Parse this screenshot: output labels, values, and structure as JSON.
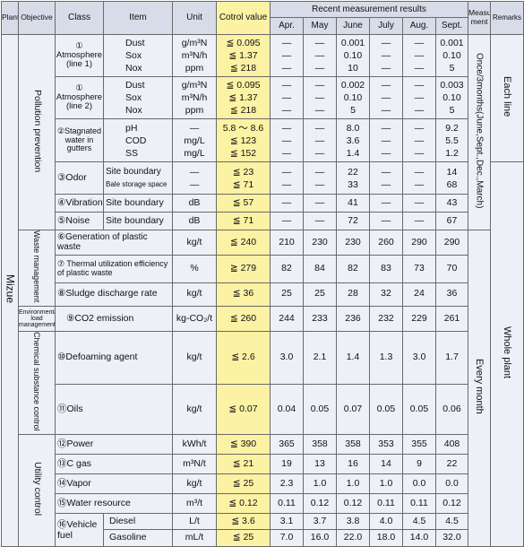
{
  "headers": {
    "plant": "Plant",
    "objective": "Objective",
    "class": "Class",
    "item": "Item",
    "unit": "Unit",
    "control": "Cotrol value",
    "recent": "Recent measurement results",
    "months": [
      "Apr.",
      "May",
      "June",
      "July",
      "Aug.",
      "Sept."
    ],
    "measure": "Measure ment",
    "remarks": "Remarks"
  },
  "plant": "Mizue",
  "objectives": {
    "pollution": "Pollution prevention",
    "waste": "Waste management",
    "env_load": "Environmental load management",
    "chemical": "Chemical substance control",
    "utility": "Utility control"
  },
  "measure": {
    "pollution": "Once/3months(June,Sept.,Dec.,March)",
    "every_month": "Every month"
  },
  "remarks": {
    "each_line": "Each line",
    "whole_plant": "Whole plant"
  },
  "rows": {
    "atm1": {
      "class": "① Atmosphere (line 1)",
      "items": [
        "Dust",
        "Sox",
        "Nox"
      ],
      "units": [
        "g/m³N",
        "m³N/h",
        "ppm"
      ],
      "control": [
        "≦ 0.095",
        "≦ 1.37",
        "≦ 218"
      ],
      "values": [
        [
          "—",
          "—",
          "0.001",
          "—",
          "—",
          "0.001"
        ],
        [
          "—",
          "—",
          "0.10",
          "—",
          "—",
          "0.10"
        ],
        [
          "—",
          "—",
          "10",
          "—",
          "—",
          "5"
        ]
      ]
    },
    "atm2": {
      "class": "① Atmosphere (line 2)",
      "items": [
        "Dust",
        "Sox",
        "Nox"
      ],
      "units": [
        "g/m³N",
        "m³N/h",
        "ppm"
      ],
      "control": [
        "≦ 0.095",
        "≦ 1.37",
        "≦ 218"
      ],
      "values": [
        [
          "—",
          "—",
          "0.002",
          "—",
          "—",
          "0.003"
        ],
        [
          "—",
          "—",
          "0.10",
          "—",
          "—",
          "0.10"
        ],
        [
          "—",
          "—",
          "5",
          "—",
          "—",
          "5"
        ]
      ]
    },
    "water": {
      "class": "②Stagnated water in gutters",
      "items": [
        "pH",
        "COD",
        "SS"
      ],
      "units": [
        "—",
        "mg/L",
        "mg/L"
      ],
      "control": [
        "5.8 ～ 8.6",
        "≦ 123",
        "≦ 152"
      ],
      "values": [
        [
          "—",
          "—",
          "8.0",
          "—",
          "—",
          "9.2"
        ],
        [
          "—",
          "—",
          "3.6",
          "—",
          "—",
          "5.5"
        ],
        [
          "—",
          "—",
          "1.4",
          "—",
          "—",
          "1.2"
        ]
      ]
    },
    "odor": {
      "class": "③Odor",
      "items": [
        "Site boundary",
        "Bale storage space"
      ],
      "units": [
        "—",
        "—"
      ],
      "control": [
        "≦ 23",
        "≦ 71"
      ],
      "values": [
        [
          "—",
          "—",
          "22",
          "—",
          "—",
          "14"
        ],
        [
          "—",
          "—",
          "33",
          "—",
          "—",
          "68"
        ]
      ]
    },
    "vibration": {
      "class": "④Vibration",
      "item": "Site boundary",
      "unit": "dB",
      "control": "≦ 57",
      "values": [
        "—",
        "—",
        "41",
        "—",
        "—",
        "43"
      ]
    },
    "noise": {
      "class": "⑤Noise",
      "item": "Site boundary",
      "unit": "dB",
      "control": "≦ 71",
      "values": [
        "—",
        "—",
        "72",
        "—",
        "—",
        "67"
      ]
    },
    "plastic_gen": {
      "label": "⑥Generation of plastic waste",
      "unit": "kg/t",
      "control": "≦ 240",
      "values": [
        "210",
        "230",
        "230",
        "260",
        "290",
        "290"
      ]
    },
    "thermal": {
      "label": "⑦ Thermal utilization efficiency of plastic waste",
      "unit": "%",
      "control": "≧ 279",
      "values": [
        "82",
        "84",
        "82",
        "83",
        "73",
        "70"
      ]
    },
    "sludge": {
      "label": "⑧Sludge discharge rate",
      "unit": "kg/t",
      "control": "≦ 36",
      "values": [
        "25",
        "25",
        "28",
        "32",
        "24",
        "36"
      ]
    },
    "co2": {
      "label": "⑨CO2 emission",
      "unit": "kg-CO₂/t",
      "control": "≦ 260",
      "values": [
        "244",
        "233",
        "236",
        "232",
        "229",
        "261"
      ]
    },
    "defoaming": {
      "label": "⑩Defoaming agent",
      "unit": "kg/t",
      "control": "≦ 2.6",
      "values": [
        "3.0",
        "2.1",
        "1.4",
        "1.3",
        "3.0",
        "1.7"
      ]
    },
    "oils": {
      "label": "⑪Oils",
      "unit": "kg/t",
      "control": "≦ 0.07",
      "values": [
        "0.04",
        "0.05",
        "0.07",
        "0.05",
        "0.05",
        "0.06"
      ]
    },
    "power": {
      "label": "⑫Power",
      "unit": "kWh/t",
      "control": "≦ 390",
      "values": [
        "365",
        "358",
        "358",
        "353",
        "355",
        "408"
      ]
    },
    "cgas": {
      "label": "⑬C gas",
      "unit": "m³N/t",
      "control": "≦ 21",
      "values": [
        "19",
        "13",
        "16",
        "14",
        "9",
        "22"
      ]
    },
    "vapor": {
      "label": "⑭Vapor",
      "unit": "kg/t",
      "control": "≦ 25",
      "values": [
        "2.3",
        "1.0",
        "1.0",
        "1.0",
        "0.0",
        "0.0"
      ]
    },
    "water_res": {
      "label": "⑮Water resource",
      "unit": "m³/t",
      "control": "≦ 0.12",
      "values": [
        "0.11",
        "0.12",
        "0.12",
        "0.11",
        "0.11",
        "0.12"
      ]
    },
    "vehicle": {
      "class": "⑯Vehicle fuel",
      "items": [
        "Diesel",
        "Gasoline"
      ],
      "units": [
        "L/t",
        "mL/t"
      ],
      "control": [
        "≦ 3.6",
        "≦ 25"
      ],
      "values": [
        [
          "3.1",
          "3.7",
          "3.8",
          "4.0",
          "4.5",
          "4.5"
        ],
        [
          "7.0",
          "16.0",
          "22.0",
          "18.0",
          "14.0",
          "32.0"
        ]
      ]
    }
  }
}
